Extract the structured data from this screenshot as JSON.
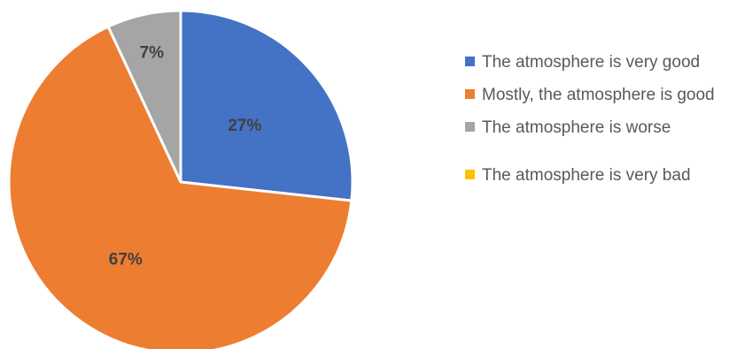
{
  "chart_data": {
    "type": "pie",
    "title": "",
    "categories": [
      "The atmosphere is very good",
      "Mostly, the atmosphere is good",
      "The atmosphere is worse",
      "The atmosphere is very bad"
    ],
    "values": [
      27,
      67,
      7,
      0
    ],
    "data_labels": [
      "27%",
      "67%",
      "7%",
      ""
    ],
    "colors": [
      "#4472C4",
      "#ED7D31",
      "#A5A5A5",
      "#FFC000"
    ],
    "legend_position": "right"
  }
}
